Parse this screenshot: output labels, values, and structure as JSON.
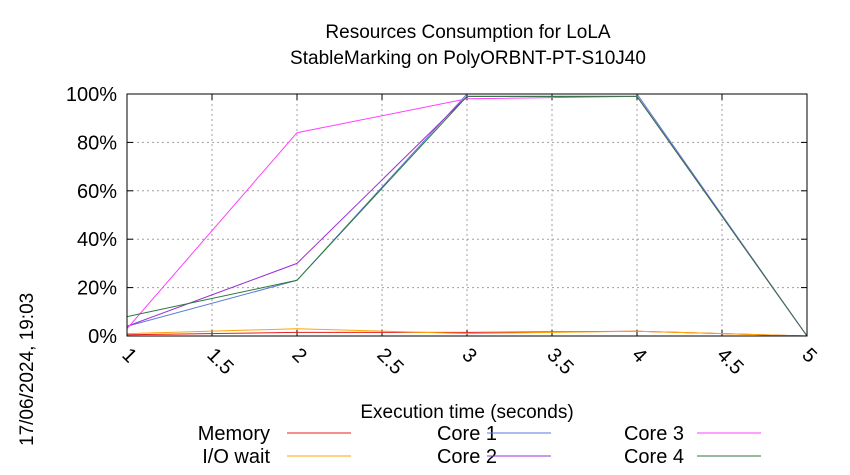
{
  "chart_data": {
    "type": "line",
    "title": [
      "Resources Consumption for LoLA",
      "StableMarking on PolyORBNT-PT-S10J40"
    ],
    "xlabel": "Execution time (seconds)",
    "ylabel": "",
    "timestamp": "17/06/2024, 19:03",
    "xlim": [
      1,
      5
    ],
    "ylim": [
      0,
      100
    ],
    "xticks": [
      "1",
      "1.5",
      "2",
      "2.5",
      "3",
      "3.5",
      "4",
      "4.5",
      "5"
    ],
    "yticks": [
      "0%",
      "20%",
      "40%",
      "60%",
      "80%",
      "100%"
    ],
    "grid": true,
    "legend_position": "bottom",
    "x": [
      1,
      2,
      3,
      4,
      5
    ],
    "series": [
      {
        "name": "Memory",
        "color": "#e8201a",
        "values": [
          0.5,
          1.5,
          1.5,
          2,
          0
        ]
      },
      {
        "name": "I/O wait",
        "color": "#ffa500",
        "values": [
          1,
          3,
          1,
          2,
          0
        ]
      },
      {
        "name": "Core 1",
        "color": "#5b78d8",
        "values": [
          4,
          23,
          100,
          100,
          0
        ]
      },
      {
        "name": "Core 2",
        "color": "#9b30d8",
        "values": [
          4,
          30,
          99,
          99,
          0
        ]
      },
      {
        "name": "Core 3",
        "color": "#ff40ff",
        "values": [
          3,
          84,
          98,
          99,
          0
        ]
      },
      {
        "name": "Core 4",
        "color": "#2a7a3a",
        "values": [
          8,
          23,
          99,
          99,
          0
        ]
      }
    ]
  }
}
